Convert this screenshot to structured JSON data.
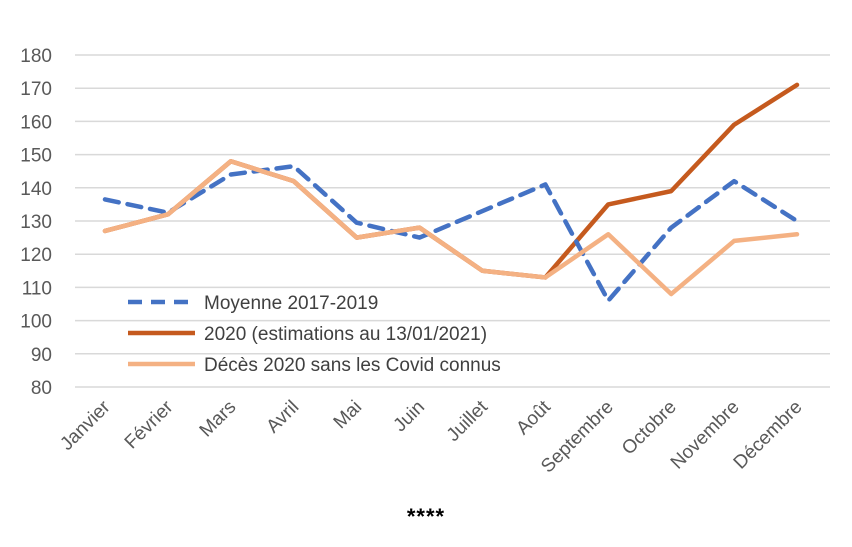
{
  "chart_data": {
    "type": "line",
    "categories": [
      "Janvier",
      "Février",
      "Mars",
      "Avril",
      "Mai",
      "Juin",
      "Juillet",
      "Août",
      "Septembre",
      "Octobre",
      "Novembre",
      "Décembre"
    ],
    "ylim": [
      80,
      180
    ],
    "yticks": [
      80,
      90,
      100,
      110,
      120,
      130,
      140,
      150,
      160,
      170,
      180
    ],
    "grid": true,
    "legend_position": "bottom-left inside",
    "series": [
      {
        "name": "Moyenne 2017-2019",
        "color": "#4472C4",
        "dash": true,
        "values": [
          136.5,
          132.5,
          144,
          146.5,
          129.5,
          125,
          133,
          141,
          106,
          128,
          142,
          130
        ]
      },
      {
        "name": "2020 (estimations au 13/01/2021)",
        "color": "#C55A1E",
        "dash": false,
        "values": [
          127,
          132,
          148,
          142,
          125,
          128,
          115,
          113,
          135,
          139,
          159,
          171
        ]
      },
      {
        "name": "Décès 2020 sans les Covid connus",
        "color": "#F4B183",
        "dash": false,
        "values": [
          127,
          132,
          148,
          142,
          125,
          128,
          115,
          113,
          126,
          108,
          124,
          126
        ]
      }
    ]
  },
  "footer": "****"
}
